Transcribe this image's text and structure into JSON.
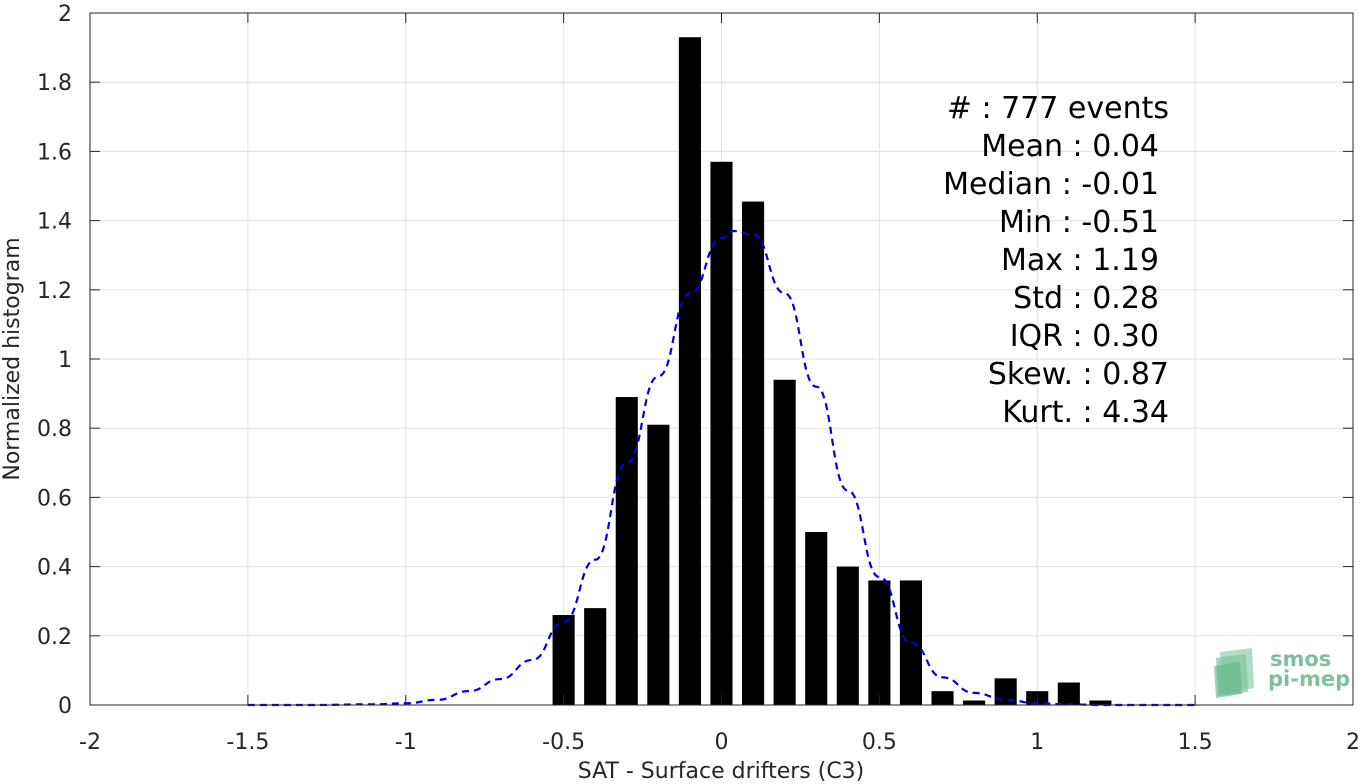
{
  "chart_data": {
    "type": "bar",
    "xlabel": "SAT - Surface drifters (C3)",
    "ylabel": "Normalized histogram",
    "xlim": [
      -2,
      2
    ],
    "ylim": [
      0,
      2
    ],
    "xticks": [
      "-2",
      "-1.5",
      "-1",
      "-0.5",
      "0",
      "0.5",
      "1",
      "1.5",
      "2"
    ],
    "yticks": [
      "0",
      "0.2",
      "0.4",
      "0.6",
      "0.8",
      "1",
      "1.2",
      "1.4",
      "1.6",
      "1.8",
      "2"
    ],
    "grid": true,
    "bar_width": 0.07,
    "bars": {
      "x": [
        -0.5,
        -0.4,
        -0.3,
        -0.2,
        -0.1,
        0.0,
        0.1,
        0.2,
        0.3,
        0.4,
        0.5,
        0.6,
        0.7,
        0.8,
        0.9,
        1.0,
        1.1,
        1.2
      ],
      "values": [
        0.26,
        0.28,
        0.89,
        0.81,
        1.93,
        1.57,
        1.455,
        0.94,
        0.5,
        0.4,
        0.36,
        0.36,
        0.04,
        0.013,
        0.077,
        0.04,
        0.065,
        0.013
      ],
      "color": "#000000"
    },
    "fit_curve": {
      "style": "dashed",
      "color": "#0000dd",
      "x": [
        -1.5,
        -1.3,
        -1.1,
        -1.0,
        -0.9,
        -0.8,
        -0.7,
        -0.6,
        -0.5,
        -0.4,
        -0.3,
        -0.2,
        -0.1,
        0.0,
        0.04,
        0.1,
        0.2,
        0.3,
        0.4,
        0.5,
        0.6,
        0.7,
        0.8,
        0.9,
        1.0,
        1.1,
        1.2,
        1.3,
        1.5
      ],
      "y": [
        0.0,
        0.0,
        0.002,
        0.005,
        0.015,
        0.04,
        0.075,
        0.13,
        0.24,
        0.42,
        0.7,
        0.95,
        1.19,
        1.35,
        1.37,
        1.36,
        1.19,
        0.92,
        0.62,
        0.37,
        0.18,
        0.08,
        0.035,
        0.015,
        0.005,
        0.002,
        0.0,
        0.0,
        0.0
      ]
    },
    "stats_lines": [
      "#  : 777 events",
      "Mean : 0.04",
      "Median : -0.01",
      "Min : -0.51",
      "Max : 1.19",
      "Std : 0.28",
      "IQR : 0.30",
      "Skew. : 0.87",
      "Kurt. : 4.34"
    ]
  },
  "logo": {
    "line1": "smos",
    "line2": "pi-mep"
  }
}
